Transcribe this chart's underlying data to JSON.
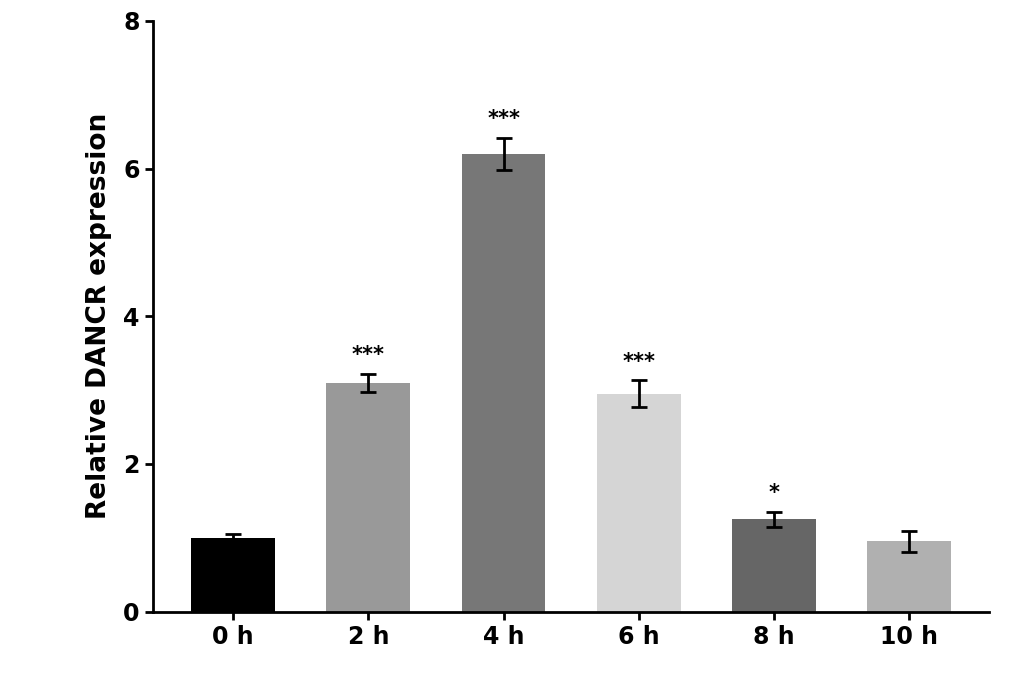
{
  "categories": [
    "0 h",
    "2 h",
    "4 h",
    "6 h",
    "8 h",
    "10 h"
  ],
  "values": [
    1.0,
    3.1,
    6.2,
    2.95,
    1.25,
    0.95
  ],
  "errors": [
    0.05,
    0.12,
    0.22,
    0.18,
    0.1,
    0.14
  ],
  "bar_colors": [
    "#000000",
    "#999999",
    "#777777",
    "#d5d5d5",
    "#666666",
    "#b0b0b0"
  ],
  "significance": [
    "",
    "***",
    "***",
    "***",
    "*",
    ""
  ],
  "ylabel": "Relative DANCR expression",
  "ylim": [
    0,
    8
  ],
  "yticks": [
    0,
    2,
    4,
    6,
    8
  ],
  "bar_width": 0.62,
  "sig_fontsize": 15,
  "axis_fontsize": 19,
  "tick_fontsize": 17,
  "fig_width": 10.2,
  "fig_height": 6.95
}
